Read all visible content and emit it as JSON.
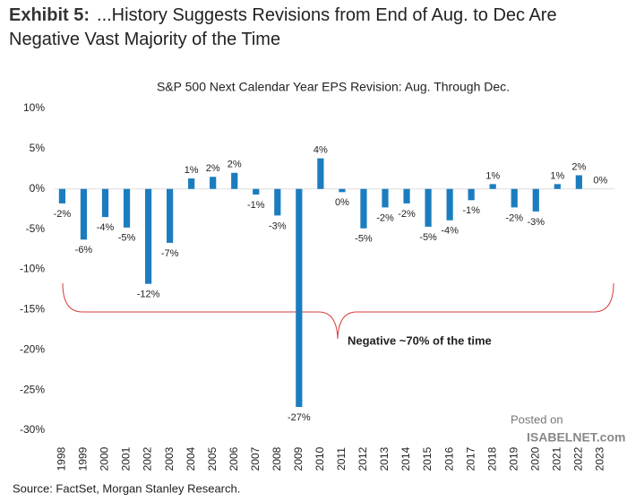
{
  "chart_data": {
    "type": "bar",
    "exhibit": "Exhibit 5:",
    "headline": "...History Suggests Revisions from End of Aug. to Dec Are Negative Vast Majority of the Time",
    "title": "S&P 500  Next Calendar Year EPS Revision: Aug. Through Dec.",
    "categories": [
      "1998",
      "1999",
      "2000",
      "2001",
      "2002",
      "2003",
      "2004",
      "2005",
      "2006",
      "2007",
      "2008",
      "2009",
      "2010",
      "2011",
      "2012",
      "2013",
      "2014",
      "2015",
      "2016",
      "2017",
      "2018",
      "2019",
      "2020",
      "2021",
      "2022",
      "2023"
    ],
    "values": [
      -1.8,
      -6.3,
      -3.5,
      -4.8,
      -11.8,
      -6.7,
      1.3,
      1.5,
      2.0,
      -0.7,
      -3.3,
      -27.1,
      3.8,
      -0.4,
      -4.9,
      -2.3,
      -1.8,
      -4.7,
      -3.9,
      -1.4,
      0.6,
      -2.3,
      -2.8,
      0.6,
      1.7,
      0
    ],
    "value_labels": [
      "-2%",
      "-6%",
      "-4%",
      "-5%",
      "-12%",
      "-7%",
      "1%",
      "2%",
      "2%",
      "-1%",
      "-3%",
      "-27%",
      "4%",
      "0%",
      "-5%",
      "-2%",
      "-2%",
      "-5%",
      "-4%",
      "-1%",
      "1%",
      "-2%",
      "-3%",
      "1%",
      "2%",
      "0%"
    ],
    "color": "#1b7dbf",
    "ylim": [
      -30,
      10
    ],
    "yticks": [
      {
        "value": 10,
        "label": "10%"
      },
      {
        "value": 5,
        "label": "5%"
      },
      {
        "value": 0,
        "label": "0%"
      },
      {
        "value": -5,
        "label": "-5%"
      },
      {
        "value": -10,
        "label": "-10%"
      },
      {
        "value": -15,
        "label": "-15%"
      },
      {
        "value": -20,
        "label": "-20%"
      },
      {
        "value": -25,
        "label": "-25%"
      },
      {
        "value": -30,
        "label": "-30%"
      }
    ],
    "grid": false,
    "annotation": "Negative ~70% of the time",
    "source": "Source: FactSet, Morgan Stanley Research.",
    "watermark": [
      "Posted on",
      "ISABELNET.com"
    ]
  }
}
